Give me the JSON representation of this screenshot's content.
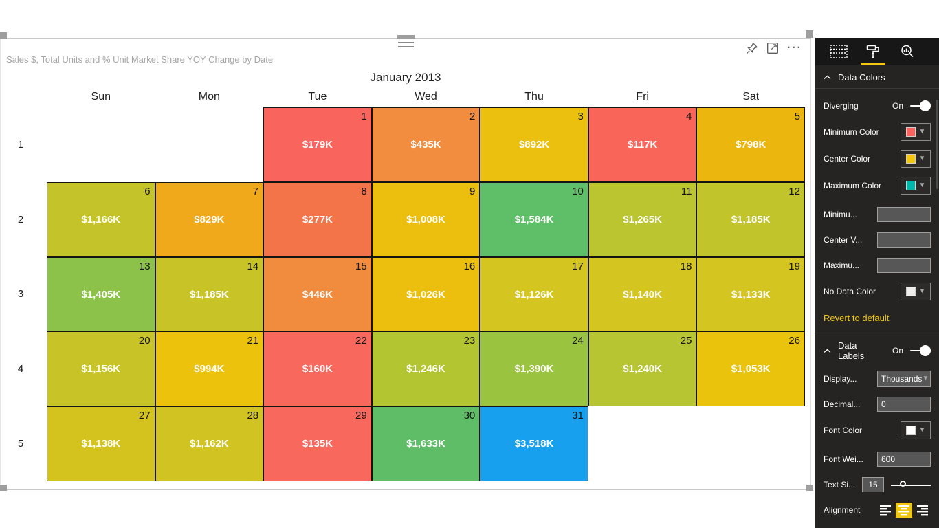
{
  "visual": {
    "title": "Sales $, Total Units and % Unit Market Share YOY Change by Date",
    "toolbar_icons": [
      "pin-icon",
      "focus-mode-icon",
      "more-options-icon"
    ]
  },
  "calendar": {
    "month_title": "January 2013",
    "day_headers": [
      "Sun",
      "Mon",
      "Tue",
      "Wed",
      "Thu",
      "Fri",
      "Sat"
    ],
    "week_numbers": [
      "1",
      "2",
      "3",
      "4",
      "5"
    ],
    "first_day_column": 2,
    "days": [
      {
        "day": 1,
        "value": "$179K",
        "color": "#F9655C"
      },
      {
        "day": 2,
        "value": "$435K",
        "color": "#F28C3E"
      },
      {
        "day": 3,
        "value": "$892K",
        "color": "#ECC00E"
      },
      {
        "day": 4,
        "value": "$117K",
        "color": "#FA655A"
      },
      {
        "day": 5,
        "value": "$798K",
        "color": "#EBB60E"
      },
      {
        "day": 6,
        "value": "$1,166K",
        "color": "#C5C32A"
      },
      {
        "day": 7,
        "value": "$829K",
        "color": "#EFA91B"
      },
      {
        "day": 8,
        "value": "$277K",
        "color": "#F4744A"
      },
      {
        "day": 9,
        "value": "$1,008K",
        "color": "#ECBE0D"
      },
      {
        "day": 10,
        "value": "$1,584K",
        "color": "#5FBE68"
      },
      {
        "day": 11,
        "value": "$1,265K",
        "color": "#BAC52F"
      },
      {
        "day": 12,
        "value": "$1,185K",
        "color": "#C2C42B"
      },
      {
        "day": 13,
        "value": "$1,405K",
        "color": "#8DC24A"
      },
      {
        "day": 14,
        "value": "$1,185K",
        "color": "#C8C427"
      },
      {
        "day": 15,
        "value": "$446K",
        "color": "#F18B3D"
      },
      {
        "day": 16,
        "value": "$1,026K",
        "color": "#ECBE0D"
      },
      {
        "day": 17,
        "value": "$1,126K",
        "color": "#D5C521"
      },
      {
        "day": 18,
        "value": "$1,140K",
        "color": "#D4C521"
      },
      {
        "day": 19,
        "value": "$1,133K",
        "color": "#D5C521"
      },
      {
        "day": 20,
        "value": "$1,156K",
        "color": "#C8C427"
      },
      {
        "day": 21,
        "value": "$994K",
        "color": "#ECC20D"
      },
      {
        "day": 22,
        "value": "$160K",
        "color": "#F9685C"
      },
      {
        "day": 23,
        "value": "$1,246K",
        "color": "#B4C532"
      },
      {
        "day": 24,
        "value": "$1,390K",
        "color": "#9AC33F"
      },
      {
        "day": 25,
        "value": "$1,240K",
        "color": "#B6C531"
      },
      {
        "day": 26,
        "value": "$1,053K",
        "color": "#EAC30D"
      },
      {
        "day": 27,
        "value": "$1,138K",
        "color": "#D4C31F"
      },
      {
        "day": 28,
        "value": "$1,162K",
        "color": "#D1C321"
      },
      {
        "day": 29,
        "value": "$135K",
        "color": "#F9685C"
      },
      {
        "day": 30,
        "value": "$1,633K",
        "color": "#5FBD67"
      },
      {
        "day": 31,
        "value": "$3,518K",
        "color": "#16A0ED"
      }
    ]
  },
  "format_pane": {
    "accent_color": "#F2C80F",
    "tabs": [
      "fields-icon",
      "format-roller-icon",
      "analytics-icon"
    ],
    "selected_tab": "format-roller-icon",
    "data_colors": {
      "section_label": "Data Colors",
      "diverging_label": "Diverging",
      "diverging_state": "On",
      "minimum_color_label": "Minimum Color",
      "minimum_color": "#FD625E",
      "center_color_label": "Center Color",
      "center_color": "#F2C80F",
      "maximum_color_label": "Maximum Color",
      "maximum_color": "#00B8AA",
      "minimum_value_label": "Minimu...",
      "minimum_value": "",
      "center_value_label": "Center V...",
      "center_value": "",
      "maximum_value_label": "Maximu...",
      "maximum_value": "",
      "no_data_color_label": "No Data Color",
      "no_data_color": "#EEEEEE",
      "revert_label": "Revert to default"
    },
    "data_labels": {
      "section_label": "Data Labels",
      "state": "On",
      "display_label": "Display...",
      "display_value": "Thousands",
      "decimal_label": "Decimal...",
      "decimal_value": "0",
      "font_color_label": "Font Color",
      "font_color": "#FFFFFF",
      "font_weight_label": "Font Wei...",
      "font_weight_value": "600",
      "text_size_label": "Text Si...",
      "text_size_value": "15",
      "alignment_label": "Alignment",
      "alignment_selected": "center"
    }
  }
}
